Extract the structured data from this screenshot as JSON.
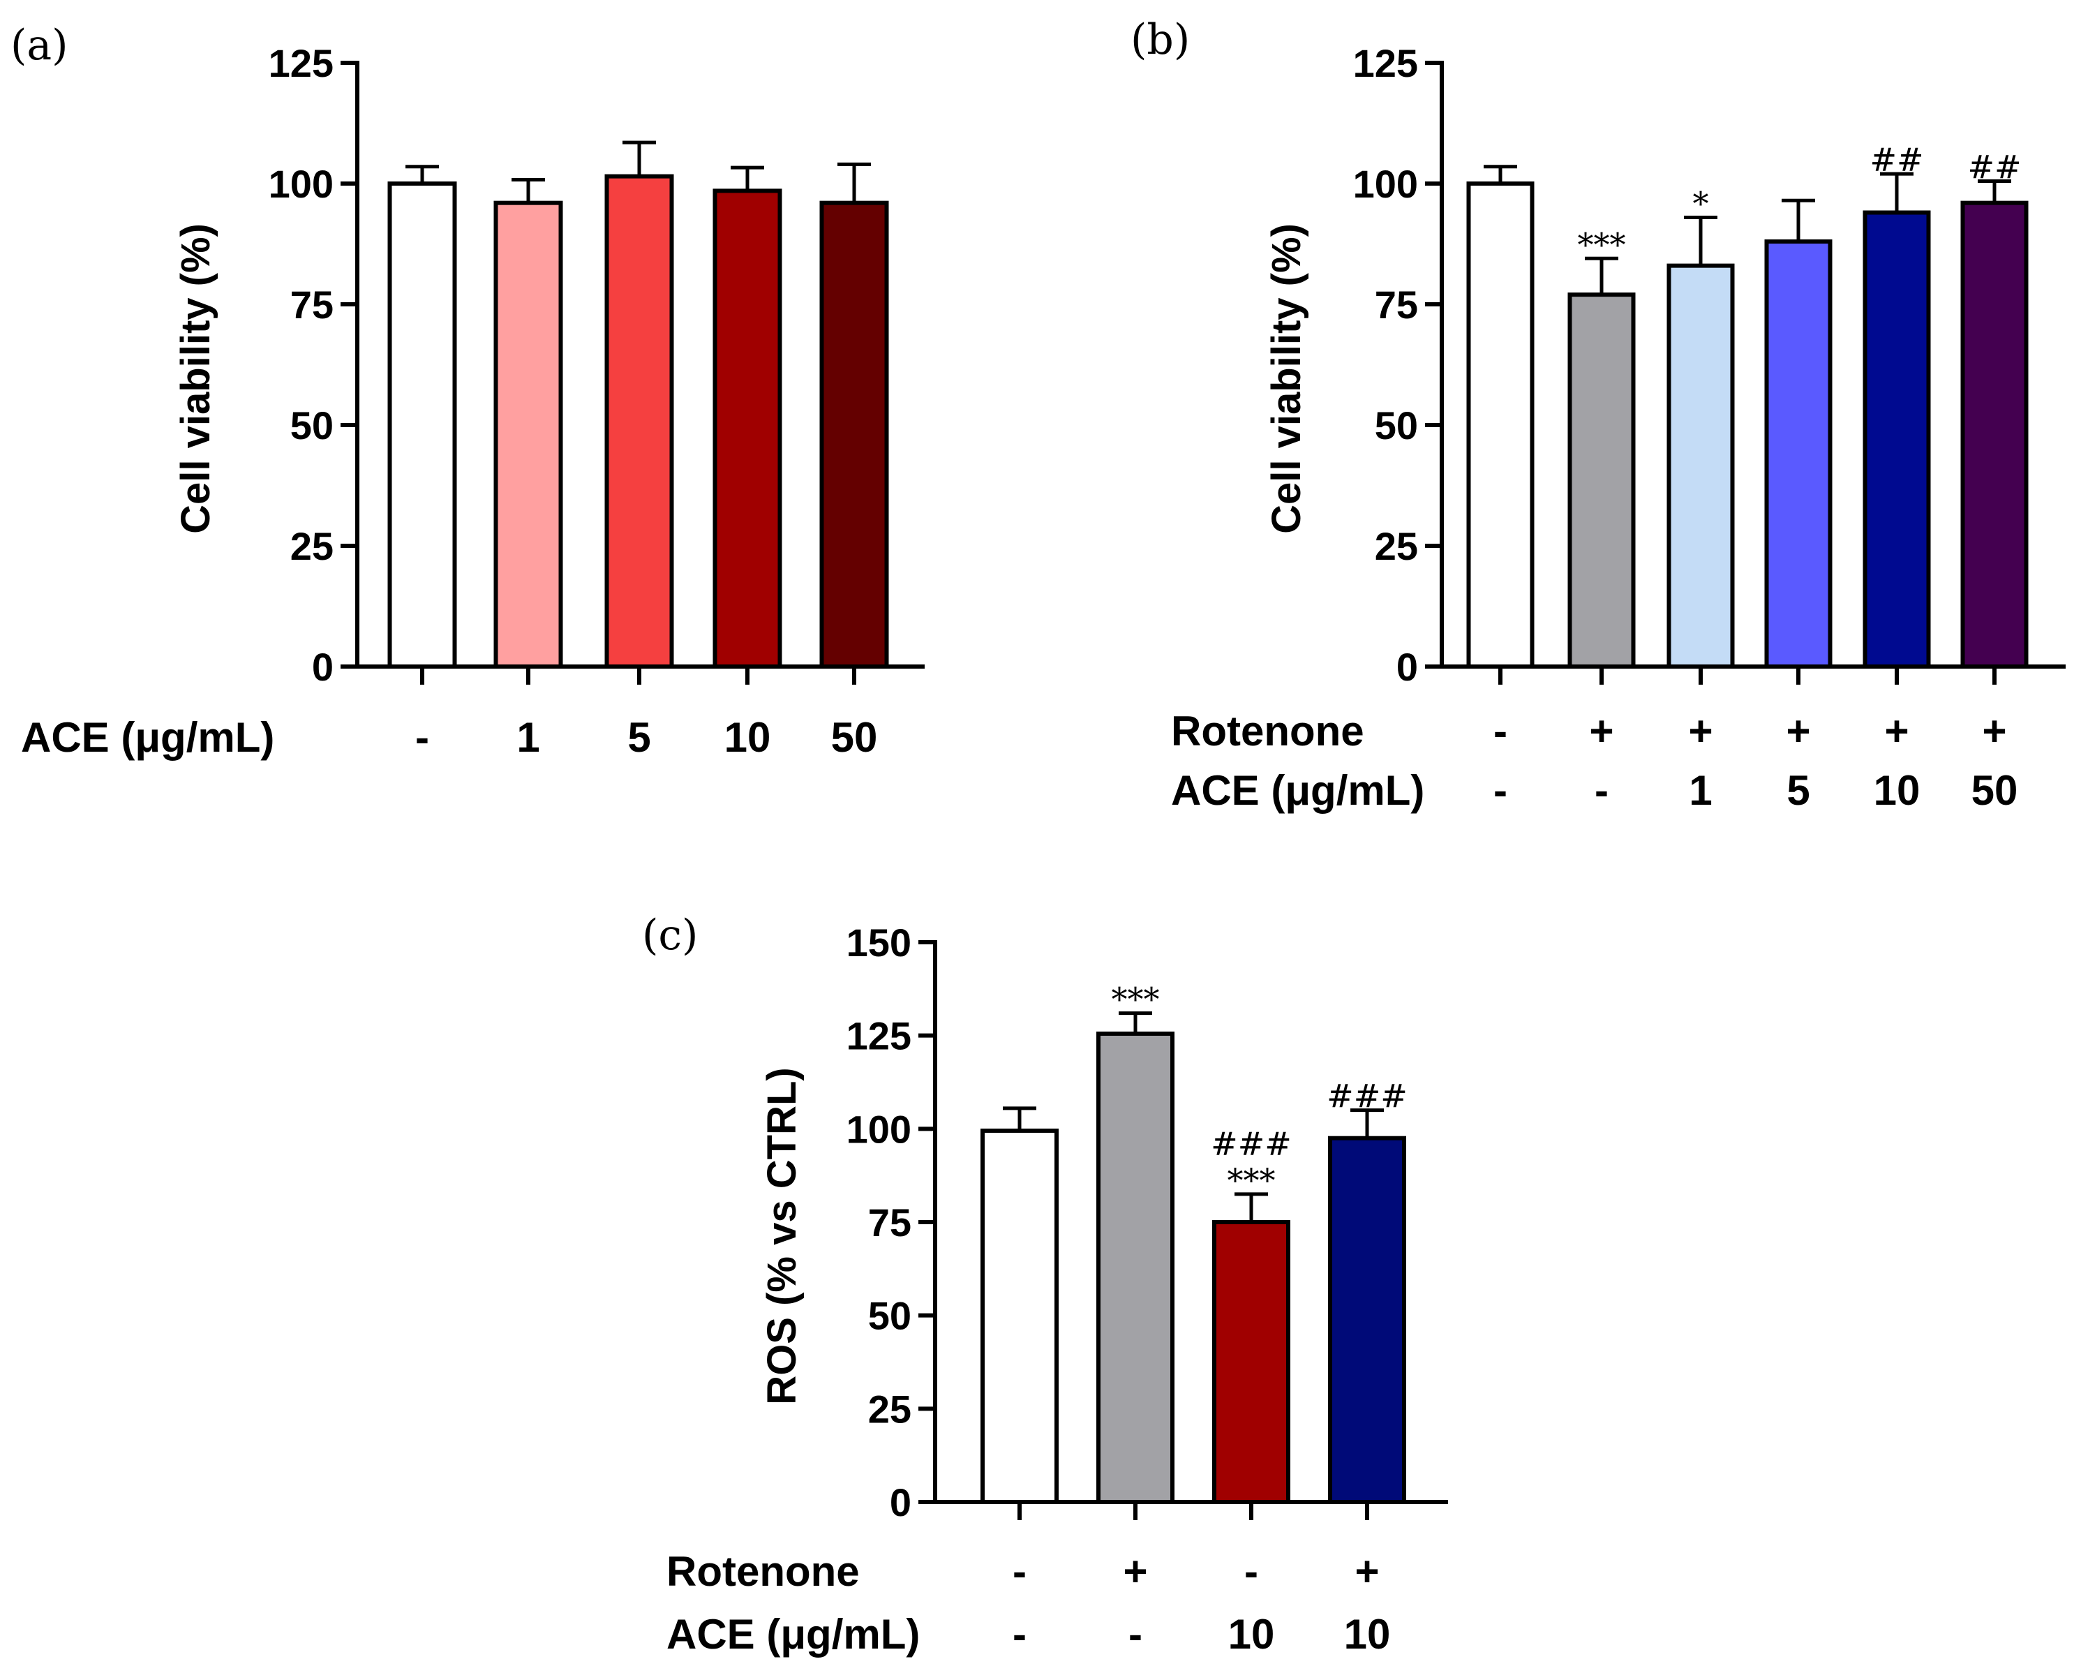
{
  "chart_data": [
    {
      "panel": "(a)",
      "type": "bar",
      "ylabel": "Cell viability (%)",
      "ylim": [
        0,
        125
      ],
      "yticks": [
        "0",
        "25",
        "50",
        "75",
        "100",
        "125"
      ],
      "rows": [
        {
          "label": "ACE (μg/mL)",
          "values": [
            "-",
            "1",
            "5",
            "10",
            "50"
          ]
        }
      ],
      "values": [
        100,
        96,
        101.5,
        98.5,
        96
      ],
      "errors": [
        3.5,
        4.8,
        7,
        4.8,
        8
      ],
      "colors": [
        "#ffffff",
        "#ffa0a0",
        "#f54040",
        "#a00000",
        "#640000"
      ],
      "annotations": [
        "",
        "",
        "",
        "",
        ""
      ]
    },
    {
      "panel": "(b)",
      "type": "bar",
      "ylabel": "Cell viability (%)",
      "ylim": [
        0,
        125
      ],
      "yticks": [
        "0",
        "25",
        "50",
        "75",
        "100",
        "125"
      ],
      "rows": [
        {
          "label": "Rotenone",
          "values": [
            "-",
            "+",
            "+",
            "+",
            "+",
            "+"
          ]
        },
        {
          "label": "ACE (μg/mL)",
          "values": [
            "-",
            "-",
            "1",
            "5",
            "10",
            "50"
          ]
        }
      ],
      "values": [
        100,
        77,
        83,
        88,
        94,
        96
      ],
      "errors": [
        3.5,
        7.5,
        10,
        8.5,
        8,
        4.5
      ],
      "colors": [
        "#ffffff",
        "#a2a2a6",
        "#c4dcf6",
        "#5a5aff",
        "#000a90",
        "#440050"
      ],
      "annotations": [
        "",
        "***",
        "*",
        "",
        "##",
        "##"
      ]
    },
    {
      "panel": "(c)",
      "type": "bar",
      "ylabel": "ROS (% vs CTRL)",
      "ylim": [
        0,
        150
      ],
      "yticks": [
        "0",
        "25",
        "50",
        "75",
        "100",
        "125",
        "150"
      ],
      "rows": [
        {
          "label": "Rotenone",
          "values": [
            "-",
            "+",
            "-",
            "+"
          ]
        },
        {
          "label": "ACE (μg/mL)",
          "values": [
            "-",
            "-",
            "10",
            "10"
          ]
        }
      ],
      "values": [
        99.5,
        125.5,
        75,
        97.5
      ],
      "errors": [
        6,
        5.5,
        7.5,
        7.5
      ],
      "colors": [
        "#ffffff",
        "#a2a2a6",
        "#a00000",
        "#000a78"
      ],
      "annotations": [
        "",
        "***",
        "###\n***",
        "###"
      ]
    }
  ]
}
